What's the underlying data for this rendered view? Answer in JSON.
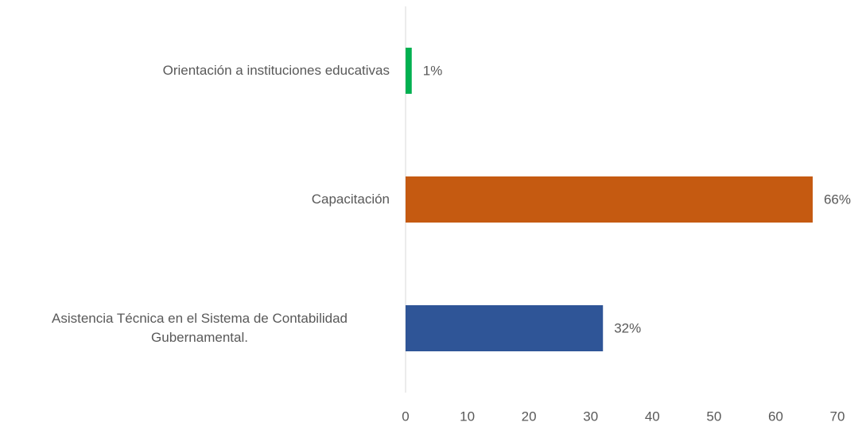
{
  "chart_data": {
    "type": "bar",
    "orientation": "horizontal",
    "categories": [
      "Asistencia Técnica en el Sistema de Contabilidad Gubernamental.",
      "Capacitación",
      "Orientación a instituciones educativas"
    ],
    "values": [
      32,
      66,
      1
    ],
    "value_labels": [
      "32%",
      "66%",
      "1%"
    ],
    "colors": [
      "#2f5597",
      "#c55a11",
      "#00b050"
    ],
    "xlim": [
      0,
      70
    ],
    "xticks": [
      0,
      10,
      20,
      30,
      40,
      50,
      60,
      70
    ],
    "grid": false
  }
}
